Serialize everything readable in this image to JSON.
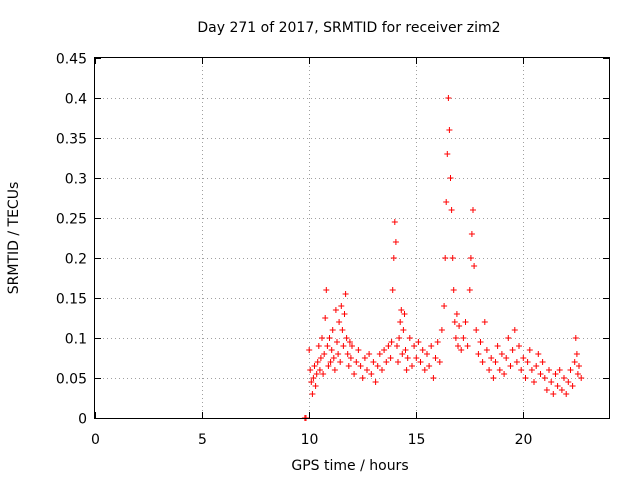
{
  "chart_data": {
    "type": "scatter",
    "title": "Day 271 of 2017, SRMTID for receiver zim2",
    "xlabel": "GPS time / hours",
    "ylabel": "SRMTID / TECUs",
    "xlim": [
      0,
      24
    ],
    "ylim": [
      0,
      0.45
    ],
    "xticks": [
      0,
      5,
      10,
      15,
      20
    ],
    "xtick_labels": [
      "0",
      "5",
      "10",
      "15",
      "20"
    ],
    "yticks": [
      0,
      0.05,
      0.1,
      0.15,
      0.2,
      0.25,
      0.3,
      0.35,
      0.4,
      0.45
    ],
    "ytick_labels": [
      "0",
      "0.05",
      "0.1",
      "0.15",
      "0.2",
      "0.25",
      "0.3",
      "0.35",
      "0.4",
      "0.45"
    ],
    "grid": true,
    "series": [
      {
        "name": "SRMTID",
        "color": "#ff0000",
        "marker": "+",
        "points": [
          [
            9.8,
            0.0
          ],
          [
            9.85,
            0.0
          ],
          [
            10.0,
            0.085
          ],
          [
            10.05,
            0.06
          ],
          [
            10.1,
            0.045
          ],
          [
            10.15,
            0.03
          ],
          [
            10.2,
            0.05
          ],
          [
            10.25,
            0.065
          ],
          [
            10.3,
            0.04
          ],
          [
            10.35,
            0.055
          ],
          [
            10.4,
            0.07
          ],
          [
            10.45,
            0.09
          ],
          [
            10.5,
            0.06
          ],
          [
            10.55,
            0.075
          ],
          [
            10.6,
            0.1
          ],
          [
            10.65,
            0.055
          ],
          [
            10.7,
            0.08
          ],
          [
            10.75,
            0.125
          ],
          [
            10.8,
            0.16
          ],
          [
            10.85,
            0.09
          ],
          [
            10.9,
            0.065
          ],
          [
            10.95,
            0.1
          ],
          [
            11.0,
            0.07
          ],
          [
            11.05,
            0.085
          ],
          [
            11.1,
            0.11
          ],
          [
            11.15,
            0.075
          ],
          [
            11.2,
            0.06
          ],
          [
            11.25,
            0.135
          ],
          [
            11.3,
            0.095
          ],
          [
            11.35,
            0.08
          ],
          [
            11.4,
            0.12
          ],
          [
            11.45,
            0.07
          ],
          [
            11.5,
            0.14
          ],
          [
            11.55,
            0.11
          ],
          [
            11.6,
            0.09
          ],
          [
            11.65,
            0.13
          ],
          [
            11.7,
            0.155
          ],
          [
            11.75,
            0.1
          ],
          [
            11.8,
            0.08
          ],
          [
            11.85,
            0.065
          ],
          [
            11.9,
            0.095
          ],
          [
            11.95,
            0.075
          ],
          [
            12.0,
            0.09
          ],
          [
            12.1,
            0.055
          ],
          [
            12.2,
            0.07
          ],
          [
            12.3,
            0.085
          ],
          [
            12.4,
            0.065
          ],
          [
            12.5,
            0.05
          ],
          [
            12.6,
            0.075
          ],
          [
            12.7,
            0.06
          ],
          [
            12.8,
            0.08
          ],
          [
            12.9,
            0.055
          ],
          [
            13.0,
            0.07
          ],
          [
            13.1,
            0.045
          ],
          [
            13.2,
            0.065
          ],
          [
            13.3,
            0.08
          ],
          [
            13.4,
            0.06
          ],
          [
            13.5,
            0.085
          ],
          [
            13.6,
            0.07
          ],
          [
            13.7,
            0.09
          ],
          [
            13.8,
            0.075
          ],
          [
            13.85,
            0.095
          ],
          [
            13.9,
            0.16
          ],
          [
            13.95,
            0.2
          ],
          [
            14.0,
            0.245
          ],
          [
            14.05,
            0.22
          ],
          [
            14.1,
            0.09
          ],
          [
            14.15,
            0.07
          ],
          [
            14.2,
            0.1
          ],
          [
            14.25,
            0.12
          ],
          [
            14.3,
            0.135
          ],
          [
            14.35,
            0.08
          ],
          [
            14.4,
            0.11
          ],
          [
            14.45,
            0.13
          ],
          [
            14.5,
            0.085
          ],
          [
            14.55,
            0.06
          ],
          [
            14.6,
            0.075
          ],
          [
            14.7,
            0.1
          ],
          [
            14.8,
            0.065
          ],
          [
            14.9,
            0.09
          ],
          [
            15.0,
            0.075
          ],
          [
            15.1,
            0.095
          ],
          [
            15.2,
            0.07
          ],
          [
            15.3,
            0.085
          ],
          [
            15.4,
            0.06
          ],
          [
            15.5,
            0.08
          ],
          [
            15.6,
            0.065
          ],
          [
            15.7,
            0.09
          ],
          [
            15.8,
            0.05
          ],
          [
            15.9,
            0.075
          ],
          [
            16.0,
            0.095
          ],
          [
            16.1,
            0.07
          ],
          [
            16.2,
            0.11
          ],
          [
            16.3,
            0.14
          ],
          [
            16.35,
            0.2
          ],
          [
            16.4,
            0.27
          ],
          [
            16.45,
            0.33
          ],
          [
            16.5,
            0.4
          ],
          [
            16.55,
            0.36
          ],
          [
            16.6,
            0.3
          ],
          [
            16.65,
            0.26
          ],
          [
            16.7,
            0.2
          ],
          [
            16.75,
            0.16
          ],
          [
            16.8,
            0.12
          ],
          [
            16.85,
            0.1
          ],
          [
            16.9,
            0.13
          ],
          [
            16.95,
            0.09
          ],
          [
            17.0,
            0.115
          ],
          [
            17.1,
            0.085
          ],
          [
            17.2,
            0.1
          ],
          [
            17.3,
            0.12
          ],
          [
            17.4,
            0.09
          ],
          [
            17.5,
            0.16
          ],
          [
            17.55,
            0.2
          ],
          [
            17.6,
            0.23
          ],
          [
            17.65,
            0.26
          ],
          [
            17.7,
            0.19
          ],
          [
            17.8,
            0.11
          ],
          [
            17.9,
            0.08
          ],
          [
            18.0,
            0.095
          ],
          [
            18.1,
            0.07
          ],
          [
            18.2,
            0.12
          ],
          [
            18.3,
            0.085
          ],
          [
            18.4,
            0.06
          ],
          [
            18.5,
            0.075
          ],
          [
            18.6,
            0.05
          ],
          [
            18.7,
            0.07
          ],
          [
            18.8,
            0.09
          ],
          [
            18.9,
            0.06
          ],
          [
            19.0,
            0.08
          ],
          [
            19.1,
            0.055
          ],
          [
            19.2,
            0.075
          ],
          [
            19.3,
            0.1
          ],
          [
            19.4,
            0.065
          ],
          [
            19.5,
            0.085
          ],
          [
            19.6,
            0.11
          ],
          [
            19.7,
            0.07
          ],
          [
            19.8,
            0.09
          ],
          [
            19.9,
            0.06
          ],
          [
            20.0,
            0.075
          ],
          [
            20.1,
            0.05
          ],
          [
            20.2,
            0.07
          ],
          [
            20.3,
            0.085
          ],
          [
            20.4,
            0.06
          ],
          [
            20.5,
            0.045
          ],
          [
            20.6,
            0.065
          ],
          [
            20.7,
            0.08
          ],
          [
            20.8,
            0.055
          ],
          [
            20.9,
            0.07
          ],
          [
            21.0,
            0.05
          ],
          [
            21.1,
            0.035
          ],
          [
            21.2,
            0.06
          ],
          [
            21.3,
            0.045
          ],
          [
            21.4,
            0.03
          ],
          [
            21.5,
            0.055
          ],
          [
            21.6,
            0.04
          ],
          [
            21.7,
            0.06
          ],
          [
            21.8,
            0.035
          ],
          [
            21.9,
            0.05
          ],
          [
            22.0,
            0.03
          ],
          [
            22.1,
            0.045
          ],
          [
            22.2,
            0.06
          ],
          [
            22.3,
            0.04
          ],
          [
            22.4,
            0.07
          ],
          [
            22.45,
            0.1
          ],
          [
            22.5,
            0.08
          ],
          [
            22.55,
            0.055
          ],
          [
            22.6,
            0.065
          ],
          [
            22.7,
            0.05
          ]
        ]
      }
    ]
  }
}
